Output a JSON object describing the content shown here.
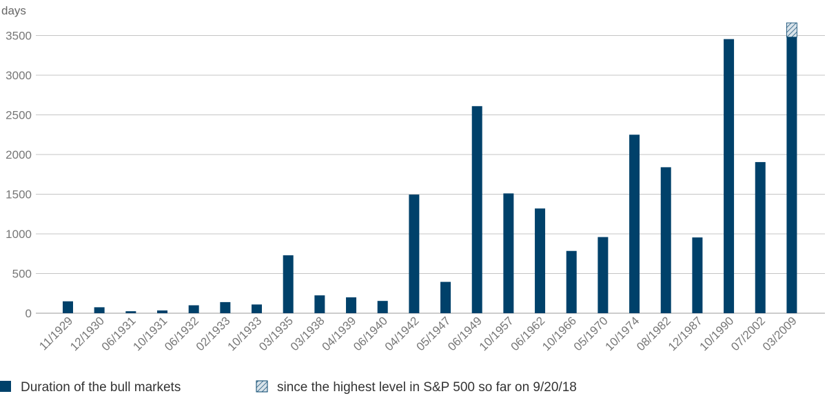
{
  "chart_data": {
    "type": "bar",
    "ylabel": "days",
    "ylim": [
      0,
      3600
    ],
    "yticks": [
      0,
      500,
      1000,
      1500,
      2000,
      2500,
      3000,
      3500
    ],
    "grid": true,
    "legend_position": "bottom-left",
    "categories": [
      "11/1929",
      "12/1930",
      "06/1931",
      "10/1931",
      "06/1932",
      "02/1933",
      "10/1933",
      "03/1935",
      "03/1938",
      "04/1939",
      "06/1940",
      "04/1942",
      "05/1947",
      "06/1949",
      "10/1957",
      "06/1962",
      "10/1966",
      "05/1970",
      "10/1974",
      "08/1982",
      "12/1987",
      "10/1990",
      "07/2002",
      "03/2009"
    ],
    "series": [
      {
        "name": "Duration of the bull markets",
        "color": "#00416a",
        "pattern": "solid",
        "values": [
          150,
          75,
          25,
          35,
          100,
          140,
          110,
          730,
          225,
          200,
          155,
          1495,
          395,
          2610,
          1510,
          1320,
          785,
          960,
          2250,
          1840,
          955,
          3455,
          1905,
          3480
        ]
      },
      {
        "name": "since the highest level in S&P 500 so far on 9/20/18",
        "color": "#00416a",
        "pattern": "hatched",
        "values": [
          0,
          0,
          0,
          0,
          0,
          0,
          0,
          0,
          0,
          0,
          0,
          0,
          0,
          0,
          0,
          0,
          0,
          0,
          0,
          0,
          0,
          0,
          0,
          180
        ]
      }
    ]
  }
}
